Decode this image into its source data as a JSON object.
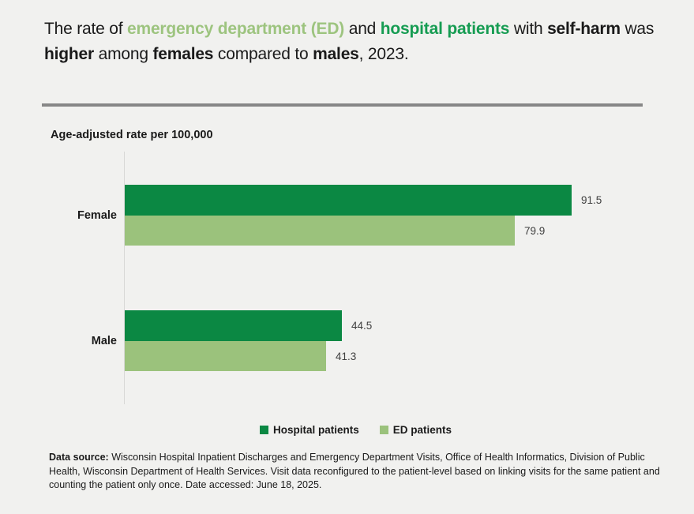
{
  "page": {
    "background": "#f1f1ef"
  },
  "title": {
    "segments": [
      {
        "text": "The rate of ",
        "style": "plain"
      },
      {
        "text": "emergency department (ED)",
        "style": "green_light"
      },
      {
        "text": " and ",
        "style": "plain"
      },
      {
        "text": "hospital patients",
        "style": "green_dark"
      },
      {
        "text": " with ",
        "style": "plain"
      },
      {
        "text": "self-harm",
        "style": "bold"
      },
      {
        "text": " was",
        "style": "plain"
      },
      {
        "break": true
      },
      {
        "text": "higher",
        "style": "bold"
      },
      {
        "text": " among ",
        "style": "plain"
      },
      {
        "text": "females",
        "style": "bold"
      },
      {
        "text": " compared to ",
        "style": "plain"
      },
      {
        "text": "males",
        "style": "bold"
      },
      {
        "text": ", 2023.",
        "style": "plain"
      }
    ]
  },
  "colors": {
    "hospital_green": "#0b8843",
    "ed_green": "#9bc27c",
    "title_green_light": "#9dc47f",
    "title_green_dark": "#169c52",
    "divider_gray": "#878787",
    "axis_line": "#d8d8d6",
    "value_label_gray": "#3f3f3f",
    "text_black": "#1a1a1a"
  },
  "chart_data": {
    "type": "bar",
    "orientation": "horizontal",
    "axis_title": "Age-adjusted rate per 100,000",
    "categories": [
      "Female",
      "Male"
    ],
    "series": [
      {
        "name": "Hospital patients",
        "color": "#0b8843",
        "values": [
          91.5,
          44.5
        ]
      },
      {
        "name": "ED patients",
        "color": "#9bc27c",
        "values": [
          79.9,
          41.3
        ]
      }
    ],
    "xlim": [
      0,
      100
    ],
    "grid": false,
    "value_labels": true,
    "legend_position": "bottom"
  },
  "footer": {
    "segments": [
      {
        "text": "Data source:",
        "style": "bold"
      },
      {
        "text": " Wisconsin Hospital Inpatient Discharges and Emergency Department Visits, Office of Health Informatics, Division of Public Health, Wisconsin Department of Health Services. Visit data reconfigured to the patient-level based on linking visits for the same patient and counting the patient only once. Date accessed: June 18, 2025.",
        "style": "plain"
      }
    ]
  }
}
